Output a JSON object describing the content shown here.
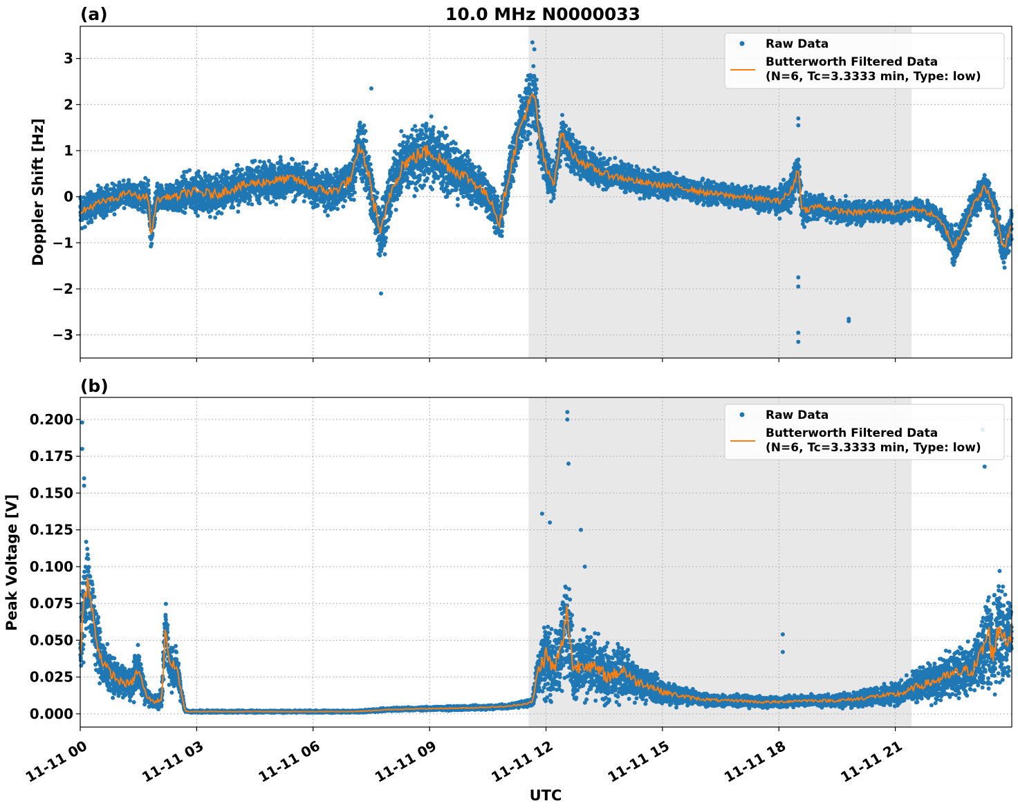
{
  "figure": {
    "title": "10.0 MHz N0000033",
    "xlabel": "UTC",
    "x_tick_labels": [
      "11-11 00",
      "11-11 03",
      "11-11 06",
      "11-11 09",
      "11-11 12",
      "11-11 15",
      "11-11 18",
      "11-11 21"
    ],
    "x_tick_hours": [
      0,
      3,
      6,
      9,
      12,
      15,
      18,
      21
    ],
    "x_range_hours": [
      0,
      24
    ],
    "shaded_interval_hours": [
      11.55,
      21.42
    ],
    "shade_color": "#e8e8e8",
    "raw_color": "#1f77b4",
    "filtered_color": "#ff7f0e",
    "grid": true,
    "legend_position": "top-right",
    "legend": {
      "raw_label": "Raw Data",
      "filtered_label_line1": "Butterworth Filtered Data",
      "filtered_label_line2": "(N=6, Tc=3.3333 min, Type: low)"
    }
  },
  "chart_data": [
    {
      "type": "scatter",
      "panel_label": "(a)",
      "ylabel": "Doppler Shift [Hz]",
      "ylim": [
        -3.5,
        3.7
      ],
      "y_ticks": [
        3,
        2,
        1,
        0,
        -1,
        -2,
        -3
      ],
      "y_tick_labels": [
        "3",
        "2",
        "1",
        "0",
        "−1",
        "−2",
        "−3"
      ],
      "series": [
        {
          "name": "Butterworth Filtered Data",
          "x_hours": [
            0,
            0.3,
            0.6,
            0.9,
            1.2,
            1.5,
            1.75,
            1.83,
            1.95,
            2.2,
            2.5,
            2.75,
            3.0,
            3.5,
            4.0,
            4.5,
            5.0,
            5.5,
            6.0,
            6.5,
            7.0,
            7.2,
            7.4,
            7.55,
            7.75,
            8.0,
            8.3,
            8.7,
            9.0,
            9.3,
            9.6,
            10.0,
            10.3,
            10.6,
            10.8,
            11.0,
            11.3,
            11.5,
            11.7,
            11.85,
            12.0,
            12.2,
            12.4,
            12.5,
            12.7,
            13.0,
            13.5,
            14.0,
            14.5,
            15.0,
            15.5,
            16.0,
            16.5,
            17.0,
            17.5,
            18.0,
            18.3,
            18.5,
            18.6,
            19.0,
            19.5,
            20.0,
            20.5,
            21.0,
            21.3,
            21.5,
            22.0,
            22.3,
            22.5,
            22.8,
            23.0,
            23.3,
            23.5,
            23.7,
            23.8,
            24.0
          ],
          "y": [
            -0.35,
            -0.2,
            -0.1,
            -0.05,
            0.1,
            0.0,
            0.0,
            -0.9,
            -0.1,
            0.0,
            0.0,
            0.1,
            0.1,
            0.05,
            0.2,
            0.3,
            0.35,
            0.4,
            0.2,
            0.1,
            0.4,
            1.1,
            0.6,
            -0.1,
            -0.8,
            0.1,
            0.7,
            0.9,
            1.0,
            0.8,
            0.6,
            0.4,
            0.2,
            -0.1,
            -0.6,
            0.3,
            1.4,
            1.9,
            2.2,
            1.2,
            0.6,
            0.3,
            1.4,
            1.2,
            0.9,
            0.7,
            0.5,
            0.4,
            0.3,
            0.25,
            0.2,
            0.1,
            0.05,
            0.0,
            -0.05,
            -0.1,
            0.1,
            0.6,
            -0.3,
            -0.2,
            -0.3,
            -0.35,
            -0.3,
            -0.35,
            -0.3,
            -0.25,
            -0.4,
            -0.7,
            -1.1,
            -0.6,
            -0.2,
            0.2,
            -0.1,
            -0.8,
            -1.1,
            -0.6
          ]
        },
        {
          "name": "Raw Data",
          "x_hours": [
            0,
            0.3,
            0.6,
            0.9,
            1.2,
            1.5,
            1.75,
            1.83,
            1.95,
            2.2,
            2.5,
            2.75,
            3.0,
            3.5,
            4.0,
            4.5,
            5.0,
            5.5,
            6.0,
            6.5,
            7.0,
            7.2,
            7.4,
            7.55,
            7.75,
            8.0,
            8.3,
            8.7,
            9.0,
            9.3,
            9.6,
            10.0,
            10.3,
            10.6,
            10.8,
            11.0,
            11.3,
            11.5,
            11.7,
            11.85,
            12.0,
            12.2,
            12.4,
            12.5,
            12.7,
            13.0,
            13.5,
            14.0,
            14.5,
            15.0,
            15.5,
            16.0,
            16.5,
            17.0,
            17.5,
            18.0,
            18.3,
            18.5,
            18.6,
            19.0,
            19.5,
            20.0,
            20.5,
            21.0,
            21.3,
            21.5,
            22.0,
            22.3,
            22.5,
            22.8,
            23.0,
            23.3,
            23.5,
            23.7,
            23.8,
            24.0
          ],
          "y": [
            -0.35,
            -0.2,
            -0.1,
            -0.05,
            0.1,
            0.0,
            0.0,
            -0.9,
            -0.1,
            0.0,
            0.0,
            0.1,
            0.1,
            0.05,
            0.2,
            0.3,
            0.35,
            0.4,
            0.2,
            0.1,
            0.4,
            1.1,
            0.6,
            -0.1,
            -0.8,
            0.1,
            0.7,
            0.9,
            1.0,
            0.8,
            0.6,
            0.4,
            0.2,
            -0.1,
            -0.6,
            0.3,
            1.4,
            1.9,
            2.2,
            1.2,
            0.6,
            0.3,
            1.4,
            1.2,
            0.9,
            0.7,
            0.5,
            0.4,
            0.3,
            0.25,
            0.2,
            0.1,
            0.05,
            0.0,
            -0.05,
            -0.1,
            0.1,
            0.6,
            -0.3,
            -0.2,
            -0.3,
            -0.35,
            -0.3,
            -0.35,
            -0.3,
            -0.25,
            -0.4,
            -0.7,
            -1.1,
            -0.6,
            -0.2,
            0.2,
            -0.1,
            -0.8,
            -1.1,
            -0.6
          ],
          "spread": [
            0.5,
            0.45,
            0.4,
            0.4,
            0.35,
            0.4,
            0.5,
            0.6,
            0.45,
            0.35,
            0.5,
            0.55,
            0.6,
            0.6,
            0.6,
            0.6,
            0.6,
            0.55,
            0.55,
            0.6,
            0.7,
            0.9,
            0.9,
            0.9,
            0.9,
            0.8,
            0.9,
            1.0,
            1.0,
            0.9,
            0.8,
            0.7,
            0.6,
            0.6,
            0.6,
            0.7,
            0.8,
            1.0,
            1.0,
            0.8,
            0.6,
            0.55,
            0.6,
            0.6,
            0.55,
            0.5,
            0.45,
            0.4,
            0.4,
            0.4,
            0.35,
            0.35,
            0.35,
            0.35,
            0.35,
            0.4,
            0.5,
            0.6,
            0.45,
            0.35,
            0.35,
            0.35,
            0.3,
            0.3,
            0.3,
            0.3,
            0.3,
            0.4,
            0.5,
            0.45,
            0.4,
            0.45,
            0.5,
            0.6,
            0.6,
            0.4
          ],
          "outliers_x_hours": [
            18.5,
            18.5,
            18.5,
            18.5,
            19.8,
            19.8,
            18.5,
            18.5,
            11.65,
            11.7,
            7.75,
            7.5
          ],
          "outliers_y": [
            -3.15,
            -2.95,
            -1.95,
            -1.75,
            -2.65,
            -2.7,
            1.7,
            1.55,
            3.35,
            3.2,
            -2.1,
            2.35
          ]
        }
      ]
    },
    {
      "type": "scatter",
      "panel_label": "(b)",
      "ylabel": "Peak Voltage [V]",
      "ylim": [
        -0.009,
        0.215
      ],
      "y_ticks": [
        0.2,
        0.175,
        0.15,
        0.125,
        0.1,
        0.075,
        0.05,
        0.025,
        0.0
      ],
      "y_tick_labels": [
        "0.200",
        "0.175",
        "0.150",
        "0.125",
        "0.100",
        "0.075",
        "0.050",
        "0.025",
        "0.000"
      ],
      "series": [
        {
          "name": "Butterworth Filtered Data",
          "x_hours": [
            0,
            0.1,
            0.2,
            0.3,
            0.5,
            0.7,
            1.0,
            1.3,
            1.5,
            1.7,
            1.9,
            2.1,
            2.2,
            2.3,
            2.5,
            2.6,
            2.7,
            2.8,
            3.0,
            4.0,
            5.0,
            6.0,
            7.0,
            7.5,
            8.0,
            9.0,
            10.0,
            11.0,
            11.5,
            11.65,
            11.8,
            12.0,
            12.2,
            12.4,
            12.55,
            12.7,
            13.0,
            13.3,
            13.6,
            14.0,
            14.3,
            14.6,
            15.0,
            15.5,
            16.0,
            16.5,
            17.0,
            17.5,
            18.0,
            18.5,
            19.0,
            19.5,
            20.0,
            20.5,
            21.0,
            21.3,
            21.5,
            22.0,
            22.3,
            22.6,
            23.0,
            23.2,
            23.4,
            23.5,
            23.7,
            23.85,
            24.0
          ],
          "y": [
            0.045,
            0.075,
            0.09,
            0.07,
            0.04,
            0.03,
            0.022,
            0.02,
            0.03,
            0.012,
            0.008,
            0.01,
            0.06,
            0.035,
            0.03,
            0.015,
            0.002,
            0.0015,
            0.0015,
            0.0015,
            0.0015,
            0.0015,
            0.0015,
            0.002,
            0.003,
            0.0035,
            0.004,
            0.005,
            0.007,
            0.008,
            0.03,
            0.04,
            0.03,
            0.045,
            0.07,
            0.03,
            0.035,
            0.03,
            0.025,
            0.03,
            0.022,
            0.02,
            0.015,
            0.012,
            0.01,
            0.009,
            0.009,
            0.008,
            0.008,
            0.009,
            0.009,
            0.009,
            0.01,
            0.012,
            0.013,
            0.015,
            0.018,
            0.022,
            0.025,
            0.028,
            0.03,
            0.04,
            0.055,
            0.04,
            0.06,
            0.05,
            0.055
          ]
        },
        {
          "name": "Raw Data",
          "x_hours": [
            0,
            0.1,
            0.2,
            0.3,
            0.5,
            0.7,
            1.0,
            1.3,
            1.5,
            1.7,
            1.9,
            2.1,
            2.2,
            2.3,
            2.5,
            2.6,
            2.7,
            2.8,
            3.0,
            4.0,
            5.0,
            6.0,
            7.0,
            7.5,
            8.0,
            9.0,
            10.0,
            11.0,
            11.5,
            11.65,
            11.8,
            12.0,
            12.2,
            12.4,
            12.55,
            12.7,
            13.0,
            13.3,
            13.6,
            14.0,
            14.3,
            14.6,
            15.0,
            15.5,
            16.0,
            16.5,
            17.0,
            17.5,
            18.0,
            18.5,
            19.0,
            19.5,
            20.0,
            20.5,
            21.0,
            21.3,
            21.5,
            22.0,
            22.3,
            22.6,
            23.0,
            23.2,
            23.4,
            23.5,
            23.7,
            23.85,
            24.0
          ],
          "y": [
            0.045,
            0.075,
            0.09,
            0.07,
            0.04,
            0.03,
            0.022,
            0.02,
            0.03,
            0.012,
            0.008,
            0.01,
            0.06,
            0.035,
            0.03,
            0.015,
            0.002,
            0.0015,
            0.0015,
            0.0015,
            0.0015,
            0.0015,
            0.0015,
            0.002,
            0.003,
            0.0035,
            0.004,
            0.005,
            0.007,
            0.008,
            0.03,
            0.04,
            0.03,
            0.045,
            0.07,
            0.03,
            0.035,
            0.03,
            0.025,
            0.03,
            0.022,
            0.02,
            0.015,
            0.012,
            0.01,
            0.009,
            0.009,
            0.008,
            0.008,
            0.009,
            0.009,
            0.009,
            0.01,
            0.012,
            0.013,
            0.015,
            0.018,
            0.022,
            0.025,
            0.028,
            0.03,
            0.04,
            0.055,
            0.04,
            0.06,
            0.05,
            0.055
          ],
          "spread": [
            0.03,
            0.05,
            0.045,
            0.035,
            0.025,
            0.02,
            0.015,
            0.015,
            0.02,
            0.008,
            0.006,
            0.008,
            0.03,
            0.025,
            0.02,
            0.01,
            0.001,
            0.001,
            0.001,
            0.001,
            0.001,
            0.001,
            0.001,
            0.0012,
            0.0015,
            0.0015,
            0.002,
            0.002,
            0.003,
            0.004,
            0.025,
            0.04,
            0.03,
            0.04,
            0.05,
            0.03,
            0.03,
            0.03,
            0.025,
            0.025,
            0.02,
            0.015,
            0.012,
            0.008,
            0.006,
            0.005,
            0.005,
            0.005,
            0.005,
            0.005,
            0.005,
            0.006,
            0.007,
            0.008,
            0.01,
            0.012,
            0.014,
            0.018,
            0.02,
            0.022,
            0.025,
            0.035,
            0.05,
            0.04,
            0.05,
            0.04,
            0.04
          ],
          "outliers_x_hours": [
            0.05,
            0.05,
            0.1,
            0.1,
            12.55,
            12.55,
            12.58,
            12.9,
            13.0,
            18.1,
            18.1,
            23.25,
            23.3,
            11.9,
            12.1
          ],
          "outliers_y": [
            0.198,
            0.18,
            0.16,
            0.155,
            0.205,
            0.2,
            0.17,
            0.125,
            0.1,
            0.054,
            0.042,
            0.193,
            0.168,
            0.136,
            0.13
          ]
        }
      ]
    }
  ]
}
